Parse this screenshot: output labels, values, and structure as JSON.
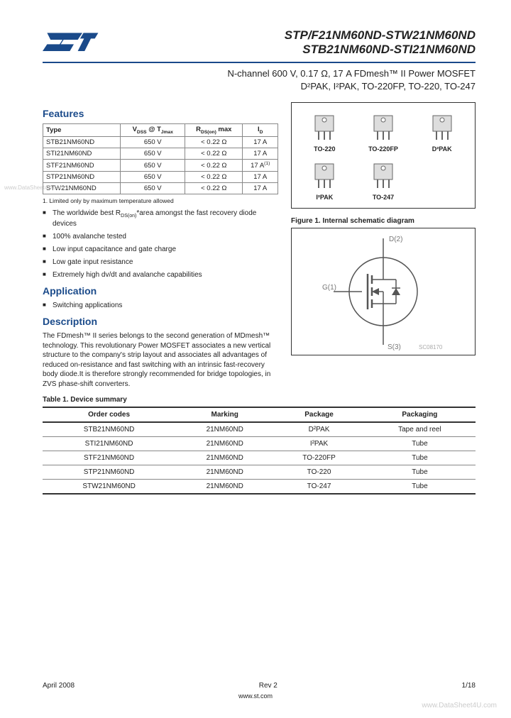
{
  "header": {
    "title_line1": "STP/F21NM60ND-STW21NM60ND",
    "title_line2": "STB21NM60ND-STI21NM60ND",
    "subtitle_line1": "N-channel 600 V, 0.17 Ω, 17 A  FDmesh™ II Power MOSFET",
    "subtitle_line2": "D²PAK, I²PAK, TO-220FP, TO-220, TO-247"
  },
  "sections": {
    "features": "Features",
    "application": "Application",
    "description": "Description"
  },
  "param_table": {
    "headers": [
      "Type",
      "V_DSS @ T_Jmax",
      "R_DS(on) max",
      "I_D"
    ],
    "rows": [
      [
        "STB21NM60ND",
        "650 V",
        "< 0.22 Ω",
        "17 A"
      ],
      [
        "STI21NM60ND",
        "650 V",
        "< 0.22 Ω",
        "17 A"
      ],
      [
        "STF21NM60ND",
        "650 V",
        "< 0.22 Ω",
        "17 A(1)"
      ],
      [
        "STP21NM60ND",
        "650 V",
        "< 0.22 Ω",
        "17 A"
      ],
      [
        "STW21NM60ND",
        "650 V",
        "< 0.22 Ω",
        "17 A"
      ]
    ],
    "footnote": "1.  Limited only by maximum temperature allowed"
  },
  "features_list": [
    "The worldwide best R_DS(on)*area amongst the fast recovery diode devices",
    "100% avalanche tested",
    "Low input capacitance and gate charge",
    "Low gate input resistance",
    "Extremely high dv/dt and avalanche capabilities"
  ],
  "application_list": [
    "Switching applications"
  ],
  "description_text": "The FDmesh™ II series belongs to the second generation of MDmesh™ technology. This revolutionary Power MOSFET associates a new vertical structure to the company's strip layout and associates all advantages of reduced on-resistance and fast switching with an intrinsic fast-recovery body diode.It is therefore strongly recommended for bridge topologies, in ZVS phase-shift converters.",
  "packages": [
    "TO-220",
    "TO-220FP",
    "D²PAK",
    "I²PAK",
    "TO-247"
  ],
  "figure1": {
    "caption": "Figure 1.    Internal schematic diagram",
    "pins": {
      "d": "D(2)",
      "g": "G(1)",
      "s": "S(3)"
    },
    "code": "SC08170"
  },
  "table1": {
    "caption": "Table 1.      Device summary",
    "headers": [
      "Order codes",
      "Marking",
      "Package",
      "Packaging"
    ],
    "rows": [
      [
        "STB21NM60ND",
        "21NM60ND",
        "D²PAK",
        "Tape and reel"
      ],
      [
        "STI21NM60ND",
        "21NM60ND",
        "I²PAK",
        "Tube"
      ],
      [
        "STF21NM60ND",
        "21NM60ND",
        "TO-220FP",
        "Tube"
      ],
      [
        "STP21NM60ND",
        "21NM60ND",
        "TO-220",
        "Tube"
      ],
      [
        "STW21NM60ND",
        "21NM60ND",
        "TO-247",
        "Tube"
      ]
    ]
  },
  "footer": {
    "date": "April 2008",
    "rev": "Rev 2",
    "page": "1/18",
    "url": "www.st.com"
  },
  "watermarks": {
    "left": "www.DataSheet4U.com",
    "right": "www.DataSheet4U.com"
  },
  "colors": {
    "heading": "#1a4a8a",
    "rule": "#1a4a8a",
    "logo_blue": "#1a4a8a"
  }
}
